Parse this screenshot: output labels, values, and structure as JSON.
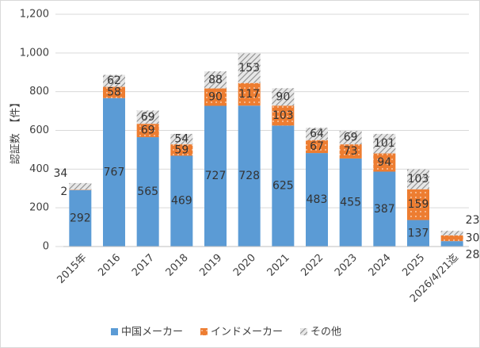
{
  "chart_data": {
    "type": "stacked_bar",
    "y_label": "認証数　【件】",
    "categories": [
      "2015年",
      "2016",
      "2017",
      "2018",
      "2019",
      "2020",
      "2021",
      "2022",
      "2023",
      "2024",
      "2025",
      "2026/4/21迄"
    ],
    "series": [
      {
        "name": "中国メーカー",
        "color": "#5b9bd5",
        "values": [
          292,
          767,
          565,
          469,
          727,
          728,
          625,
          483,
          455,
          387,
          137,
          28
        ]
      },
      {
        "name": "インドメーカー",
        "color": "#ed7d31",
        "values": [
          2,
          58,
          69,
          59,
          90,
          117,
          103,
          67,
          73,
          94,
          159,
          30
        ]
      },
      {
        "name": "その他",
        "color": "#a5a5a5",
        "values": [
          34,
          62,
          69,
          54,
          88,
          153,
          90,
          64,
          69,
          101,
          103,
          23
        ]
      }
    ],
    "ylim": [
      0,
      1200
    ],
    "yticks": [
      0,
      200,
      400,
      600,
      800,
      {
        "value": 1000,
        "label": "1,000"
      },
      {
        "value": 1200,
        "label": "1,200"
      }
    ],
    "grid": true
  }
}
